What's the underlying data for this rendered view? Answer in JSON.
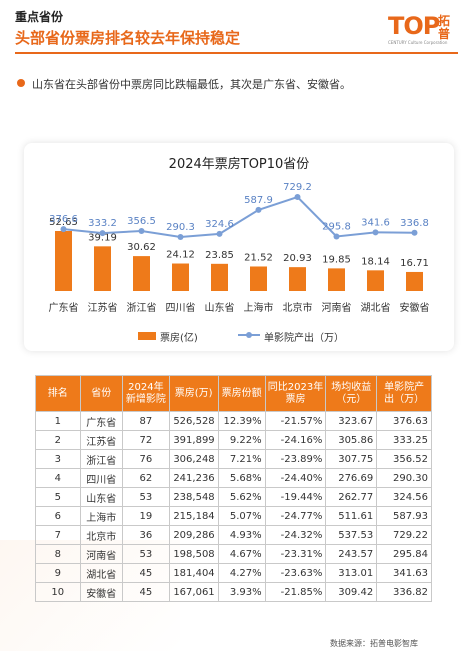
{
  "header": {
    "section": "重点省份",
    "title": "头部省份票房排名较去年保持稳定"
  },
  "logo": {
    "mark": "TOP",
    "cn": "拓普",
    "tagline": "CENTURY Culture Corporation"
  },
  "note": "山东省在头部省份中票房同比跌幅最低，其次是广东省、安徽省。",
  "colors": {
    "accent": "#e8681a",
    "bar": "#ee7a1a",
    "line": "#7b9fd6"
  },
  "chart_data": {
    "type": "bar+line",
    "title": "2024年票房TOP10省份",
    "categories": [
      "广东省",
      "江苏省",
      "浙江省",
      "四川省",
      "山东省",
      "上海市",
      "北京市",
      "河南省",
      "湖北省",
      "安徽省"
    ],
    "series": [
      {
        "name": "票房(亿)",
        "type": "bar",
        "values": [
          52.65,
          39.19,
          30.62,
          24.12,
          23.85,
          21.52,
          20.93,
          19.85,
          18.14,
          16.71
        ]
      },
      {
        "name": "单影院产出（万）",
        "type": "line",
        "values": [
          376.6,
          333.2,
          356.5,
          290.3,
          324.6,
          587.9,
          729.2,
          295.8,
          341.6,
          336.8
        ]
      }
    ],
    "legend_position": "bottom",
    "grid": false
  },
  "table": {
    "headers": [
      "排名",
      "省份",
      "2024年新增影院",
      "票房(万)",
      "票房份额",
      "同比2023年票房",
      "场均收益（元）",
      "单影院产出（万）"
    ],
    "rows": [
      [
        "1",
        "广东省",
        "87",
        "526,528",
        "12.39%",
        "-21.57%",
        "323.67",
        "376.63"
      ],
      [
        "2",
        "江苏省",
        "72",
        "391,899",
        "9.22%",
        "-24.16%",
        "305.86",
        "333.25"
      ],
      [
        "3",
        "浙江省",
        "76",
        "306,248",
        "7.21%",
        "-23.89%",
        "307.75",
        "356.52"
      ],
      [
        "4",
        "四川省",
        "62",
        "241,236",
        "5.68%",
        "-24.40%",
        "276.69",
        "290.30"
      ],
      [
        "5",
        "山东省",
        "53",
        "238,548",
        "5.62%",
        "-19.44%",
        "262.77",
        "324.56"
      ],
      [
        "6",
        "上海市",
        "19",
        "215,184",
        "5.07%",
        "-24.77%",
        "511.61",
        "587.93"
      ],
      [
        "7",
        "北京市",
        "36",
        "209,286",
        "4.93%",
        "-24.32%",
        "537.53",
        "729.22"
      ],
      [
        "8",
        "河南省",
        "53",
        "198,508",
        "4.67%",
        "-23.31%",
        "243.57",
        "295.84"
      ],
      [
        "9",
        "湖北省",
        "45",
        "181,404",
        "4.27%",
        "-23.63%",
        "313.01",
        "341.63"
      ],
      [
        "10",
        "安徽省",
        "45",
        "167,061",
        "3.93%",
        "-21.85%",
        "309.42",
        "336.82"
      ]
    ]
  },
  "source": "数据来源：拓普电影智库"
}
